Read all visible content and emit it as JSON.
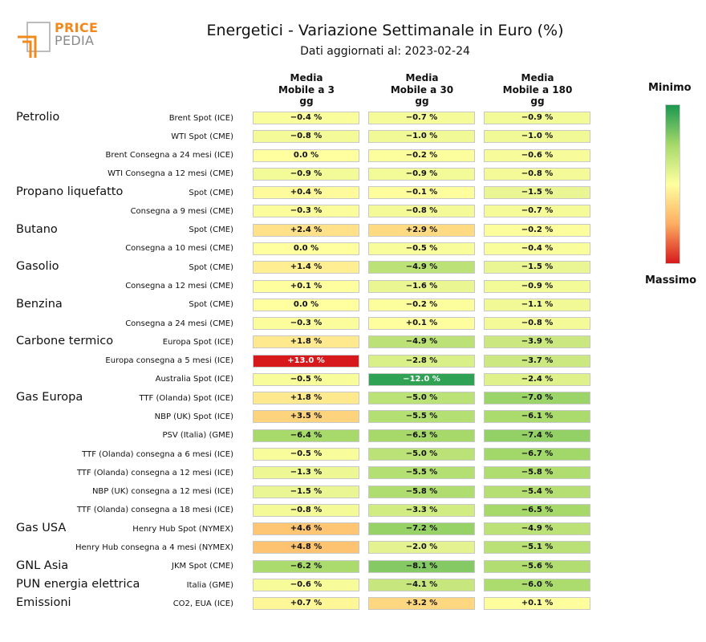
{
  "header": {
    "logo_top": "PRICE",
    "logo_bottom": "PEDIA",
    "title": "Energetici - Variazione Settimanale in Euro (%)",
    "subtitle": "Dati aggiornati al: 2023-02-24"
  },
  "legend": {
    "min_label": "Minimo",
    "max_label": "Massimo"
  },
  "colors": {
    "min": "#1a9850",
    "mid": "#ffff9f",
    "max": "#d7191c",
    "logo_orange": "#f08a1c",
    "logo_gray": "#8a8a8a"
  },
  "chart_data": {
    "type": "heatmap",
    "title": "Energetici - Variazione Settimanale in Euro (%)",
    "columns": [
      "Media\nMobile a 3\ngg",
      "Media\nMobile a 30\ngg",
      "Media\nMobile a 180\ngg"
    ],
    "groups": [
      {
        "name": "Petrolio",
        "rows": [
          {
            "label": "Brent Spot (ICE)",
            "values": [
              -0.4,
              -0.7,
              -0.9
            ]
          },
          {
            "label": "WTI Spot (CME)",
            "values": [
              -0.8,
              -1.0,
              -1.0
            ]
          },
          {
            "label": "Brent Consegna a 24 mesi (ICE)",
            "values": [
              0.0,
              -0.2,
              -0.6
            ]
          },
          {
            "label": "WTI Consegna a 12 mesi (CME)",
            "values": [
              -0.9,
              -0.9,
              -0.8
            ]
          }
        ]
      },
      {
        "name": "Propano liquefatto",
        "rows": [
          {
            "label": "Spot (CME)",
            "values": [
              0.4,
              -0.1,
              -1.5
            ]
          },
          {
            "label": "Consegna a 9 mesi (CME)",
            "values": [
              -0.3,
              -0.8,
              -0.7
            ]
          }
        ]
      },
      {
        "name": "Butano",
        "rows": [
          {
            "label": "Spot (CME)",
            "values": [
              2.4,
              2.9,
              -0.2
            ]
          },
          {
            "label": "Consegna a 10 mesi (CME)",
            "values": [
              0.0,
              -0.5,
              -0.4
            ]
          }
        ]
      },
      {
        "name": "Gasolio",
        "rows": [
          {
            "label": "Spot (CME)",
            "values": [
              1.4,
              -4.9,
              -1.5
            ]
          },
          {
            "label": "Consegna a 12 mesi (CME)",
            "values": [
              0.1,
              -1.6,
              -0.9
            ]
          }
        ]
      },
      {
        "name": "Benzina",
        "rows": [
          {
            "label": "Spot (CME)",
            "values": [
              0.0,
              -0.2,
              -1.1
            ]
          },
          {
            "label": "Consegna a 24 mesi (CME)",
            "values": [
              -0.3,
              0.1,
              -0.8
            ]
          }
        ]
      },
      {
        "name": "Carbone termico",
        "rows": [
          {
            "label": "Europa Spot (ICE)",
            "values": [
              1.8,
              -4.9,
              -3.9
            ]
          },
          {
            "label": "Europa consegna a 5 mesi (ICE)",
            "values": [
              13.0,
              -2.8,
              -3.7
            ]
          },
          {
            "label": "Australia Spot (ICE)",
            "values": [
              -0.5,
              -12.0,
              -2.4
            ]
          }
        ]
      },
      {
        "name": "Gas Europa",
        "rows": [
          {
            "label": "TTF (Olanda) Spot (ICE)",
            "values": [
              1.8,
              -5.0,
              -7.0
            ]
          },
          {
            "label": "NBP (UK) Spot (ICE)",
            "values": [
              3.5,
              -5.5,
              -6.1
            ]
          },
          {
            "label": "PSV (Italia) (GME)",
            "values": [
              -6.4,
              -6.5,
              -7.4
            ]
          },
          {
            "label": "TTF (Olanda) consegna a 6 mesi (ICE)",
            "values": [
              -0.5,
              -5.0,
              -6.7
            ]
          },
          {
            "label": "TTF (Olanda) consegna a 12 mesi (ICE)",
            "values": [
              -1.3,
              -5.5,
              -5.8
            ]
          },
          {
            "label": "NBP (UK) consegna a 12 mesi (ICE)",
            "values": [
              -1.5,
              -5.8,
              -5.4
            ]
          },
          {
            "label": "TTF (Olanda) consegna a 18 mesi (ICE)",
            "values": [
              -0.8,
              -3.3,
              -6.5
            ]
          }
        ]
      },
      {
        "name": "Gas USA",
        "rows": [
          {
            "label": "Henry Hub Spot (NYMEX)",
            "values": [
              4.6,
              -7.2,
              -4.9
            ]
          },
          {
            "label": "Henry Hub consegna a 4 mesi (NYMEX)",
            "values": [
              4.8,
              -2.0,
              -5.1
            ]
          }
        ]
      },
      {
        "name": "GNL Asia",
        "rows": [
          {
            "label": "JKM Spot (CME)",
            "values": [
              -6.2,
              -8.1,
              -5.6
            ]
          }
        ]
      },
      {
        "name": "PUN energia elettrica",
        "rows": [
          {
            "label": "Italia (GME)",
            "values": [
              -0.6,
              -4.1,
              -6.0
            ]
          }
        ]
      },
      {
        "name": "Emissioni",
        "rows": [
          {
            "label": "CO2, EUA (ICE)",
            "values": [
              0.7,
              3.2,
              0.1
            ]
          }
        ]
      }
    ]
  }
}
